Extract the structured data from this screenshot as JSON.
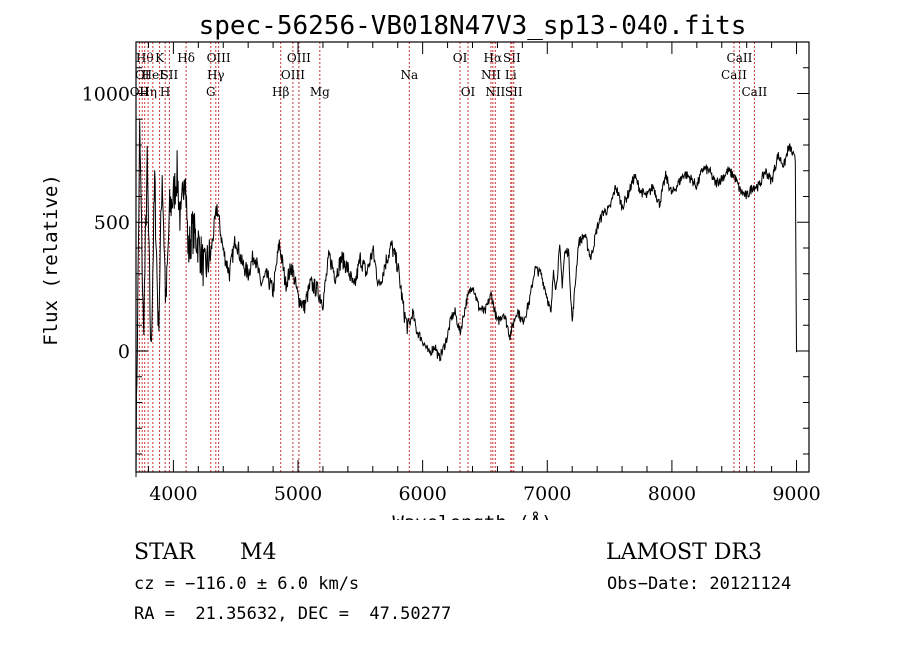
{
  "chart_data": {
    "type": "line",
    "title": "spec-56256-VB018N47V3_sp13-040.fits",
    "xlabel": "Wavelength (Å)",
    "ylabel": "Flux (relative)",
    "xlim": [
      3700,
      9100
    ],
    "ylim": [
      -470,
      1200
    ],
    "xticks": [
      4000,
      5000,
      6000,
      7000,
      8000,
      9000
    ],
    "yticks": [
      0,
      500,
      1000
    ],
    "series": [
      {
        "name": "flux",
        "x": [
          3700,
          3730,
          3760,
          3790,
          3820,
          3850,
          3880,
          3910,
          3940,
          3970,
          4000,
          4030,
          4060,
          4090,
          4120,
          4150,
          4200,
          4250,
          4300,
          4350,
          4400,
          4450,
          4500,
          4550,
          4600,
          4650,
          4700,
          4750,
          4800,
          4850,
          4900,
          4950,
          5000,
          5050,
          5100,
          5150,
          5200,
          5250,
          5300,
          5350,
          5400,
          5450,
          5500,
          5550,
          5600,
          5650,
          5700,
          5750,
          5800,
          5850,
          5880,
          5900,
          5920,
          5950,
          6000,
          6050,
          6100,
          6130,
          6160,
          6200,
          6230,
          6260,
          6300,
          6350,
          6400,
          6450,
          6500,
          6550,
          6600,
          6650,
          6700,
          6730,
          6760,
          6800,
          6830,
          6860,
          6900,
          6950,
          7000,
          7030,
          7050,
          7070,
          7100,
          7120,
          7140,
          7170,
          7200,
          7250,
          7300,
          7350,
          7400,
          7450,
          7500,
          7550,
          7600,
          7650,
          7700,
          7750,
          7800,
          7850,
          7900,
          7950,
          8000,
          8050,
          8100,
          8150,
          8200,
          8250,
          8300,
          8350,
          8400,
          8450,
          8500,
          8550,
          8600,
          8650,
          8700,
          8750,
          8800,
          8850,
          8900,
          8930,
          8950,
          8970,
          8990,
          9000
        ],
        "values": [
          -400,
          850,
          60,
          720,
          -20,
          660,
          80,
          700,
          170,
          550,
          600,
          690,
          480,
          740,
          380,
          470,
          420,
          310,
          380,
          560,
          390,
          300,
          440,
          340,
          300,
          380,
          260,
          290,
          230,
          420,
          260,
          330,
          210,
          170,
          260,
          240,
          190,
          370,
          290,
          360,
          320,
          240,
          360,
          300,
          390,
          250,
          340,
          410,
          330,
          150,
          90,
          110,
          150,
          80,
          40,
          -10,
          20,
          -30,
          0,
          60,
          130,
          150,
          70,
          190,
          260,
          170,
          150,
          220,
          110,
          150,
          60,
          110,
          160,
          110,
          150,
          200,
          320,
          300,
          210,
          140,
          320,
          240,
          400,
          260,
          380,
          390,
          110,
          420,
          450,
          360,
          480,
          540,
          550,
          640,
          560,
          610,
          680,
          620,
          600,
          640,
          570,
          680,
          610,
          650,
          690,
          670,
          640,
          710,
          700,
          650,
          670,
          700,
          680,
          620,
          600,
          640,
          640,
          700,
          660,
          760,
          720,
          780,
          790,
          760,
          740,
          -5
        ]
      }
    ],
    "lines": [
      {
        "wl": 3727,
        "label": "OII",
        "row": 2
      },
      {
        "wl": 3750,
        "label": "OI",
        "row": 1
      },
      {
        "wl": 3770,
        "label": "Hθ",
        "row": 0
      },
      {
        "wl": 3797,
        "label": "Hη",
        "row": 2
      },
      {
        "wl": 3835,
        "label": "HeI",
        "row": 1
      },
      {
        "wl": 3889,
        "label": "K",
        "row": 0
      },
      {
        "wl": 3934,
        "label": "H",
        "row": 2
      },
      {
        "wl": 3968,
        "label": "SII",
        "row": 1
      },
      {
        "wl": 4102,
        "label": "Hδ",
        "row": 0
      },
      {
        "wl": 4300,
        "label": "G",
        "row": 2
      },
      {
        "wl": 4340,
        "label": "Hγ",
        "row": 1
      },
      {
        "wl": 4363,
        "label": "OIII",
        "row": 0
      },
      {
        "wl": 4861,
        "label": "Hβ",
        "row": 2
      },
      {
        "wl": 4959,
        "label": "OIII",
        "row": 1
      },
      {
        "wl": 5007,
        "label": "OIII",
        "row": 0
      },
      {
        "wl": 5175,
        "label": "Mg",
        "row": 2
      },
      {
        "wl": 5893,
        "label": "Na",
        "row": 1
      },
      {
        "wl": 6300,
        "label": "OI",
        "row": 0
      },
      {
        "wl": 6364,
        "label": "OI",
        "row": 2
      },
      {
        "wl": 6548,
        "label": "NII",
        "row": 1
      },
      {
        "wl": 6563,
        "label": "Hα",
        "row": 0
      },
      {
        "wl": 6583,
        "label": "NII",
        "row": 2
      },
      {
        "wl": 6707,
        "label": "Li",
        "row": 1
      },
      {
        "wl": 6716,
        "label": "SII",
        "row": 0
      },
      {
        "wl": 6731,
        "label": "SII",
        "row": 2
      },
      {
        "wl": 8498,
        "label": "CaII",
        "row": 1
      },
      {
        "wl": 8542,
        "label": "CaII",
        "row": 0
      },
      {
        "wl": 8662,
        "label": "CaII",
        "row": 2
      }
    ]
  },
  "info": {
    "class": "STAR",
    "subclass": "M4",
    "survey": "LAMOST DR3",
    "cz": "cz = −116.0 ± 6.0 km/s",
    "obs_date": "Obs−Date: 20121124",
    "coords": "RA =  21.35632, DEC =  47.50277"
  },
  "colors": {
    "line_marker": "#cc3333",
    "spectrum": "#000000"
  }
}
